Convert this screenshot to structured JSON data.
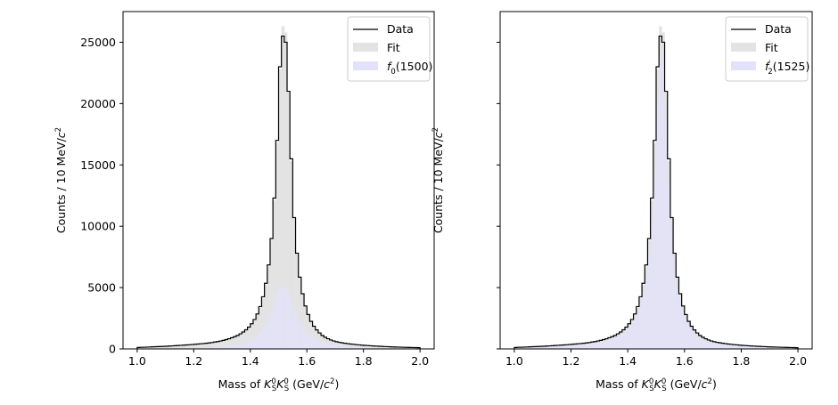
{
  "chart_data": [
    {
      "type": "step-histogram",
      "panel": "left",
      "xlabel": "Mass of K_S^0 K_S^0 (GeV/c^2)",
      "xlabel_parts": {
        "pre": "Mass of ",
        "K1": "K",
        "K1_sup": "0",
        "K1_sub": "S",
        "K2": "K",
        "K2_sup": "0",
        "K2_sub": "S",
        "post1": " (GeV/",
        "c": "c",
        "c_sup": "2",
        "post2": ")"
      },
      "ylabel": "Counts / 10 MeV/c^2",
      "ylabel_parts": {
        "pre": "Counts / 10 MeV/",
        "c": "c",
        "sup": "2"
      },
      "xlim": [
        0.95,
        2.05
      ],
      "ylim": [
        0,
        27500
      ],
      "xticks": [
        "1.0",
        "1.2",
        "1.4",
        "1.6",
        "1.8",
        "2.0"
      ],
      "yticks": [
        "0",
        "5000",
        "10000",
        "15000",
        "20000",
        "25000"
      ],
      "show_ytick_labels": true,
      "legend": {
        "location": "upper right",
        "entries": [
          {
            "key": "data",
            "label": "Data",
            "color": "#000000"
          },
          {
            "key": "fit",
            "label": "Fit",
            "color": "#e3e3e3"
          },
          {
            "key": "signal",
            "label": "f_0(1500)",
            "color": "#e2e2fc",
            "sym": "f",
            "sub": "0",
            "rest": "(1500)"
          }
        ]
      },
      "bin_width": 0.01,
      "x_range": [
        1.0,
        2.0
      ],
      "series": [
        {
          "name": "Data",
          "style": "step",
          "color": "#000000",
          "values": [
            120,
            130,
            140,
            150,
            160,
            170,
            180,
            190,
            200,
            210,
            220,
            235,
            250,
            265,
            280,
            295,
            310,
            325,
            340,
            360,
            380,
            400,
            420,
            440,
            460,
            490,
            520,
            560,
            600,
            650,
            700,
            760,
            830,
            910,
            1000,
            1100,
            1230,
            1380,
            1560,
            1780,
            2050,
            2400,
            2850,
            3450,
            4250,
            5350,
            6850,
            9000,
            12300,
            17000,
            23000,
            25500,
            25000,
            21000,
            15500,
            10700,
            7800,
            5850,
            4500,
            3500,
            2800,
            2250,
            1850,
            1550,
            1300,
            1100,
            950,
            830,
            730,
            650,
            590,
            540,
            500,
            460,
            430,
            400,
            375,
            350,
            330,
            310,
            290,
            275,
            260,
            245,
            230,
            218,
            206,
            195,
            185,
            175,
            165,
            156,
            148,
            140,
            133,
            126,
            120,
            114,
            108,
            100
          ]
        },
        {
          "name": "Fit",
          "style": "bar",
          "color": "#e3e3e3",
          "values": [
            110,
            120,
            130,
            140,
            150,
            160,
            170,
            180,
            190,
            200,
            210,
            222,
            236,
            250,
            264,
            278,
            292,
            308,
            324,
            342,
            360,
            380,
            400,
            420,
            440,
            465,
            495,
            530,
            570,
            615,
            665,
            725,
            790,
            865,
            955,
            1055,
            1180,
            1325,
            1500,
            1710,
            1980,
            2320,
            2760,
            3340,
            4120,
            5200,
            6700,
            8850,
            12100,
            16800,
            22800,
            26300,
            25800,
            20900,
            15300,
            10600,
            7700,
            5780,
            4440,
            3450,
            2760,
            2220,
            1820,
            1520,
            1280,
            1080,
            930,
            810,
            715,
            635,
            575,
            525,
            485,
            448,
            418,
            390,
            366,
            342,
            322,
            302,
            283,
            268,
            254,
            240,
            226,
            214,
            202,
            191,
            181,
            171,
            162,
            153,
            145,
            137,
            130,
            123,
            117,
            111,
            105,
            98
          ]
        },
        {
          "name": "f_0(1500)",
          "style": "bar",
          "color": "#e2e2fc",
          "opacity": 0.7,
          "values": [
            20,
            22,
            24,
            26,
            28,
            30,
            32,
            34,
            36,
            38,
            41,
            44,
            47,
            50,
            54,
            58,
            62,
            67,
            72,
            78,
            84,
            91,
            99,
            108,
            118,
            129,
            142,
            156,
            172,
            190,
            212,
            236,
            265,
            298,
            337,
            383,
            438,
            505,
            585,
            680,
            800,
            950,
            1140,
            1380,
            1700,
            2100,
            2600,
            3200,
            3900,
            4600,
            5000,
            5100,
            4900,
            4400,
            3800,
            3200,
            2650,
            2180,
            1800,
            1490,
            1240,
            1040,
            880,
            750,
            645,
            560,
            490,
            430,
            380,
            338,
            302,
            271,
            245,
            222,
            202,
            185,
            170,
            157,
            145,
            134,
            125,
            116,
            108,
            101,
            95,
            89,
            84,
            79,
            74,
            70,
            66,
            62,
            59,
            56,
            53,
            50,
            47,
            45,
            42,
            40
          ]
        }
      ]
    },
    {
      "type": "step-histogram",
      "panel": "right",
      "xlabel": "Mass of K_S^0 K_S^0 (GeV/c^2)",
      "xlabel_parts": {
        "pre": "Mass of ",
        "K1": "K",
        "K1_sup": "0",
        "K1_sub": "S",
        "K2": "K",
        "K2_sup": "0",
        "K2_sub": "S",
        "post1": " (GeV/",
        "c": "c",
        "c_sup": "2",
        "post2": ")"
      },
      "ylabel": "Counts / 10 MeV/c^2",
      "ylabel_parts": {
        "pre": "Counts / 10 MeV/",
        "c": "c",
        "sup": "2"
      },
      "xlim": [
        0.95,
        2.05
      ],
      "ylim": [
        0,
        27500
      ],
      "xticks": [
        "1.0",
        "1.2",
        "1.4",
        "1.6",
        "1.8",
        "2.0"
      ],
      "yticks": [
        "0",
        "5000",
        "10000",
        "15000",
        "20000",
        "25000"
      ],
      "show_ytick_labels": false,
      "legend": {
        "location": "upper right",
        "entries": [
          {
            "key": "data",
            "label": "Data",
            "color": "#000000"
          },
          {
            "key": "fit",
            "label": "Fit",
            "color": "#e3e3e3"
          },
          {
            "key": "signal",
            "label": "f_2'(1525)",
            "color": "#e2e2fc",
            "sym": "f",
            "sub": "2",
            "sup": "′",
            "rest": "(1525)"
          }
        ]
      },
      "bin_width": 0.01,
      "x_range": [
        1.0,
        2.0
      ],
      "series": [
        {
          "name": "Data",
          "style": "step",
          "color": "#000000",
          "values": [
            120,
            130,
            140,
            150,
            160,
            170,
            180,
            190,
            200,
            210,
            220,
            235,
            250,
            265,
            280,
            295,
            310,
            325,
            340,
            360,
            380,
            400,
            420,
            440,
            460,
            490,
            520,
            560,
            600,
            650,
            700,
            760,
            830,
            910,
            1000,
            1100,
            1230,
            1380,
            1560,
            1780,
            2050,
            2400,
            2850,
            3450,
            4250,
            5350,
            6850,
            9000,
            12300,
            17000,
            23000,
            25500,
            25000,
            21000,
            15500,
            10700,
            7800,
            5850,
            4500,
            3500,
            2800,
            2250,
            1850,
            1550,
            1300,
            1100,
            950,
            830,
            730,
            650,
            590,
            540,
            500,
            460,
            430,
            400,
            375,
            350,
            330,
            310,
            290,
            275,
            260,
            245,
            230,
            218,
            206,
            195,
            185,
            175,
            165,
            156,
            148,
            140,
            133,
            126,
            120,
            114,
            108,
            100
          ]
        },
        {
          "name": "Fit",
          "style": "bar",
          "color": "#e3e3e3",
          "values": [
            110,
            120,
            130,
            140,
            150,
            160,
            170,
            180,
            190,
            200,
            210,
            222,
            236,
            250,
            264,
            278,
            292,
            308,
            324,
            342,
            360,
            380,
            400,
            420,
            440,
            465,
            495,
            530,
            570,
            615,
            665,
            725,
            790,
            865,
            955,
            1055,
            1180,
            1325,
            1500,
            1710,
            1980,
            2320,
            2760,
            3340,
            4120,
            5200,
            6700,
            8850,
            12100,
            16800,
            22800,
            26300,
            25800,
            20900,
            15300,
            10600,
            7700,
            5780,
            4440,
            3450,
            2760,
            2220,
            1820,
            1520,
            1280,
            1080,
            930,
            810,
            715,
            635,
            575,
            525,
            485,
            448,
            418,
            390,
            366,
            342,
            322,
            302,
            283,
            268,
            254,
            240,
            226,
            214,
            202,
            191,
            181,
            171,
            162,
            153,
            145,
            137,
            130,
            123,
            117,
            111,
            105,
            98
          ]
        },
        {
          "name": "f_2'(1525)",
          "style": "bar",
          "color": "#e2e2fc",
          "opacity": 0.7,
          "values": [
            95,
            104,
            113,
            122,
            131,
            140,
            149,
            158,
            167,
            176,
            185,
            196,
            208,
            220,
            232,
            244,
            256,
            270,
            284,
            300,
            316,
            334,
            352,
            370,
            388,
            410,
            436,
            466,
            500,
            540,
            584,
            636,
            694,
            760,
            840,
            930,
            1040,
            1170,
            1330,
            1520,
            1760,
            2060,
            2450,
            2960,
            3650,
            4600,
            5900,
            7800,
            10700,
            14800,
            20200,
            23800,
            23300,
            18700,
            13600,
            9400,
            6850,
            5120,
            3930,
            3060,
            2450,
            1970,
            1620,
            1350,
            1140,
            960,
            830,
            720,
            635,
            565,
            510,
            465,
            430,
            397,
            370,
            345,
            323,
            302,
            284,
            266,
            249,
            236,
            223,
            211,
            199,
            188,
            177,
            168,
            159,
            150,
            142,
            134,
            127,
            120,
            114,
            108,
            103,
            97,
            92,
            86
          ]
        }
      ]
    }
  ]
}
